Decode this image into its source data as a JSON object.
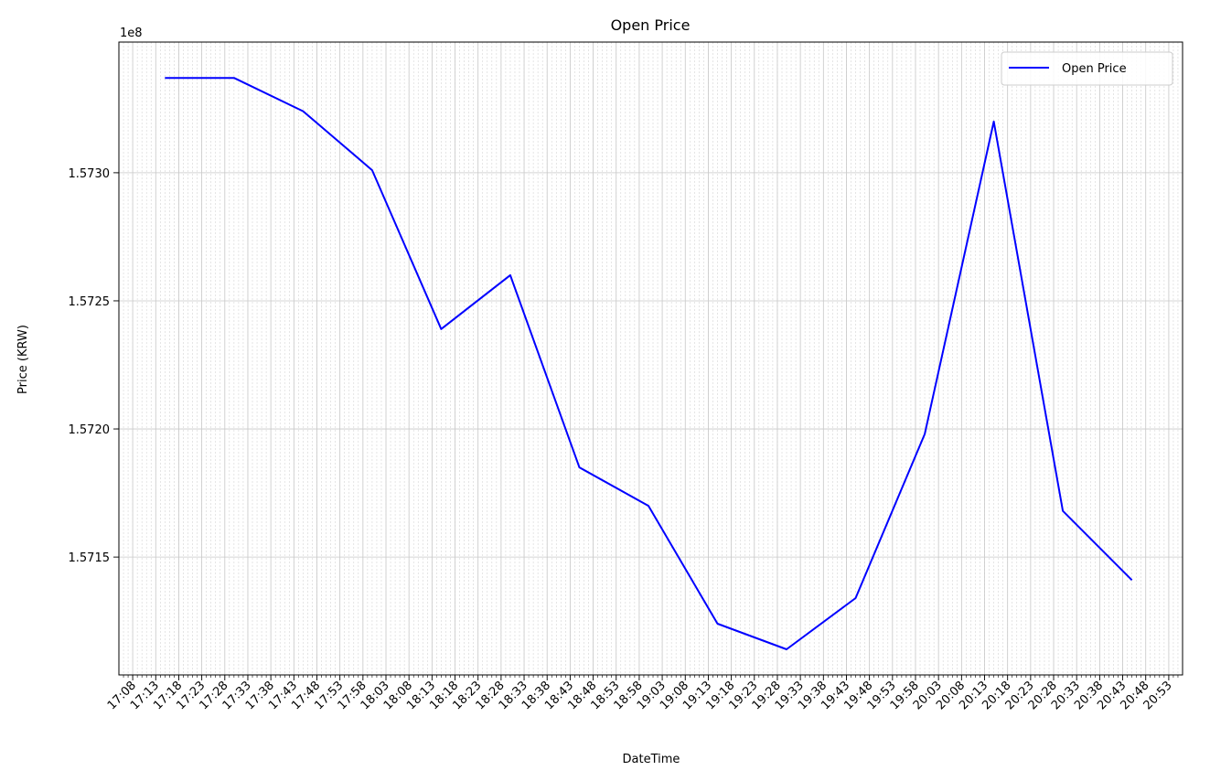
{
  "chart_data": {
    "type": "line",
    "title": "Open Price",
    "xlabel": "DateTime",
    "ylabel": "Price (KRW)",
    "y_offset_label": "1e8",
    "y_multiplier": 100000000,
    "grid": true,
    "legend_position": "top-right",
    "line_color": "#0000ff",
    "x_tick_labels": [
      "17:08",
      "17:13",
      "17:18",
      "17:23",
      "17:28",
      "17:33",
      "17:38",
      "17:43",
      "17:48",
      "17:53",
      "17:58",
      "18:03",
      "18:08",
      "18:13",
      "18:18",
      "18:23",
      "18:28",
      "18:33",
      "18:38",
      "18:43",
      "18:48",
      "18:53",
      "18:58",
      "19:03",
      "19:08",
      "19:13",
      "19:18",
      "19:23",
      "19:28",
      "19:33",
      "19:38",
      "19:43",
      "19:48",
      "19:53",
      "19:58",
      "20:03",
      "20:08",
      "20:13",
      "20:18",
      "20:23",
      "20:28",
      "20:33",
      "20:38",
      "20:43",
      "20:48",
      "20:53"
    ],
    "y_tick_labels": [
      "1.5715",
      "1.5720",
      "1.5725",
      "1.5730"
    ],
    "y_ticks": [
      157150000,
      157200000,
      157250000,
      157300000
    ],
    "xlim": [
      "17:05",
      "20:56"
    ],
    "ylim": [
      157104000,
      157351000
    ],
    "series": [
      {
        "name": "Open Price",
        "x": [
          "17:15",
          "17:30",
          "17:45",
          "18:00",
          "18:15",
          "18:30",
          "18:45",
          "19:00",
          "19:15",
          "19:30",
          "19:45",
          "20:00",
          "20:15",
          "20:30",
          "20:45"
        ],
        "y": [
          157337000,
          157337000,
          157324000,
          157301000,
          157239000,
          157260000,
          157185000,
          157170000,
          157124000,
          157114000,
          157134000,
          157198000,
          157320000,
          157168000,
          157141000
        ]
      }
    ]
  }
}
